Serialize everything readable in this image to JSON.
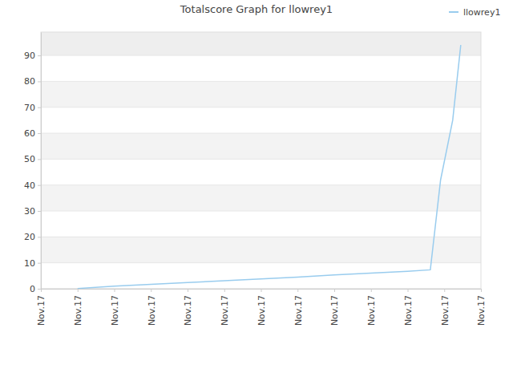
{
  "chart_data": {
    "type": "line",
    "title": "Totalscore Graph for llowrey1",
    "x": [
      1,
      2,
      3,
      4,
      5,
      6,
      7,
      8,
      9,
      10,
      10.62,
      10.9,
      11.23,
      11.45
    ],
    "series": [
      {
        "name": "llowrey1",
        "color": "#99ccee",
        "values": [
          0.1,
          1,
          1.7,
          2.4,
          3.1,
          3.8,
          4.5,
          5.3,
          6,
          6.7,
          7.3,
          42,
          65,
          94
        ]
      }
    ],
    "xlim": [
      0,
      12
    ],
    "xticks": [
      {
        "value": 0,
        "label": "Nov.17"
      },
      {
        "value": 1,
        "label": "Nov.17"
      },
      {
        "value": 2,
        "label": "Nov.17"
      },
      {
        "value": 3,
        "label": "Nov.17"
      },
      {
        "value": 4,
        "label": "Nov.17"
      },
      {
        "value": 5,
        "label": "Nov.17"
      },
      {
        "value": 6,
        "label": "Nov.17"
      },
      {
        "value": 7,
        "label": "Nov.17"
      },
      {
        "value": 8,
        "label": "Nov.17"
      },
      {
        "value": 9,
        "label": "Nov.17"
      },
      {
        "value": 10,
        "label": "Nov.17"
      },
      {
        "value": 11,
        "label": "Nov.17"
      },
      {
        "value": 12,
        "label": "Nov.17"
      }
    ],
    "ylim": [
      0,
      99
    ],
    "yticks": [
      0,
      10,
      20,
      30,
      40,
      50,
      60,
      70,
      80,
      90
    ],
    "grid": true,
    "legend": "top right"
  }
}
